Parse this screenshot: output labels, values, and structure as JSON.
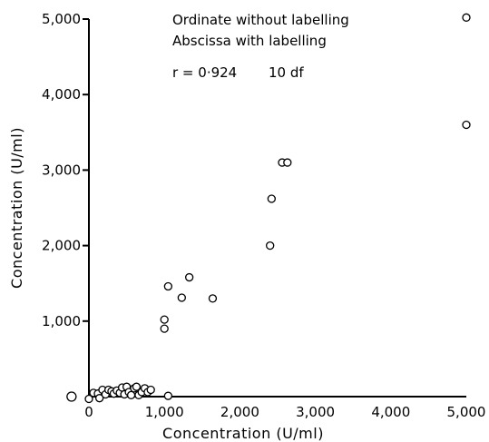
{
  "chart_data": {
    "type": "scatter",
    "title": "",
    "xlabel": "Concentration (U/ml)",
    "ylabel": "Concentration (U/ml)",
    "xlim": [
      0,
      5000
    ],
    "ylim": [
      0,
      5000
    ],
    "xticks": [
      0,
      1000,
      2000,
      3000,
      4000,
      5000
    ],
    "yticks": [
      0,
      1000,
      2000,
      3000,
      4000,
      5000
    ],
    "xtick_labels": [
      "0",
      "1,000",
      "2,000",
      "3,000",
      "4,000",
      "5,000"
    ],
    "ytick_labels": [
      "0",
      "1,000",
      "2,000",
      "3,000",
      "4,000",
      "5,000"
    ],
    "grid": false,
    "annotations": [
      "Ordinate without labelling",
      "Abscissa with labelling",
      "r = 0·924",
      "10 df"
    ],
    "points": [
      {
        "x": -230,
        "y": 0
      },
      {
        "x": 0,
        "y": -30
      },
      {
        "x": 60,
        "y": 50
      },
      {
        "x": 120,
        "y": 40
      },
      {
        "x": 140,
        "y": -20
      },
      {
        "x": 180,
        "y": 90
      },
      {
        "x": 220,
        "y": 30
      },
      {
        "x": 260,
        "y": 90
      },
      {
        "x": 300,
        "y": 70
      },
      {
        "x": 330,
        "y": 40
      },
      {
        "x": 370,
        "y": 80
      },
      {
        "x": 410,
        "y": 50
      },
      {
        "x": 440,
        "y": 120
      },
      {
        "x": 470,
        "y": 30
      },
      {
        "x": 500,
        "y": 130
      },
      {
        "x": 530,
        "y": 60
      },
      {
        "x": 560,
        "y": 20
      },
      {
        "x": 600,
        "y": 110
      },
      {
        "x": 630,
        "y": 130
      },
      {
        "x": 660,
        "y": 20
      },
      {
        "x": 700,
        "y": 60
      },
      {
        "x": 740,
        "y": 110
      },
      {
        "x": 780,
        "y": 60
      },
      {
        "x": 820,
        "y": 90
      },
      {
        "x": 1000,
        "y": 1020
      },
      {
        "x": 1000,
        "y": 900
      },
      {
        "x": 1050,
        "y": 10
      },
      {
        "x": 1050,
        "y": 1460
      },
      {
        "x": 1230,
        "y": 1310
      },
      {
        "x": 1330,
        "y": 1580
      },
      {
        "x": 1640,
        "y": 1300
      },
      {
        "x": 2400,
        "y": 2000
      },
      {
        "x": 2420,
        "y": 2620
      },
      {
        "x": 2560,
        "y": 3100
      },
      {
        "x": 2630,
        "y": 3100
      },
      {
        "x": 5000,
        "y": 3600
      },
      {
        "x": 5000,
        "y": 5020
      }
    ]
  }
}
